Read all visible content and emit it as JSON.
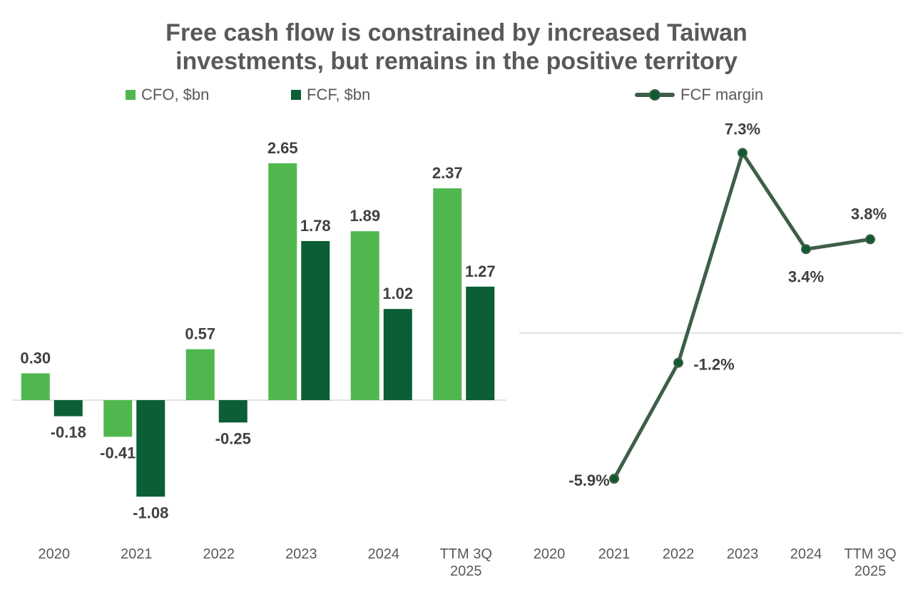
{
  "title": {
    "line1": "Free cash flow is constrained by increased Taiwan",
    "line2": "investments, but remains in the positive territory"
  },
  "colors": {
    "cfo": "#50b74f",
    "fcf": "#0b5e35",
    "margin_line": "#3f5e4a",
    "margin_marker": "#0f5a2f",
    "axis": "#d9d9d9"
  },
  "legend": {
    "cfo": "CFO, $bn",
    "fcf": "FCF, $bn",
    "margin": "FCF margin"
  },
  "chart_data": [
    {
      "type": "bar",
      "title": "",
      "categories": [
        "2020",
        "2021",
        "2022",
        "2023",
        "2024",
        "TTM 3Q\n2025"
      ],
      "series": [
        {
          "name": "CFO, $bn",
          "values": [
            0.3,
            -0.41,
            0.57,
            2.65,
            1.89,
            2.37
          ],
          "labels": [
            "0.30",
            "-0.41",
            "0.57",
            "2.65",
            "1.89",
            "2.37"
          ]
        },
        {
          "name": "FCF, $bn",
          "values": [
            -0.18,
            -1.08,
            -0.25,
            1.78,
            1.02,
            1.27
          ],
          "labels": [
            "-0.18",
            "-1.08",
            "-0.25",
            "1.78",
            "1.02",
            "1.27"
          ]
        }
      ],
      "xlabel": "",
      "ylabel": "",
      "grid": false
    },
    {
      "type": "line",
      "title": "",
      "categories": [
        "2020",
        "2021",
        "2022",
        "2023",
        "2024",
        "TTM 3Q\n2025"
      ],
      "series": [
        {
          "name": "FCF margin",
          "values": [
            null,
            -5.9,
            -1.2,
            7.3,
            3.4,
            3.8
          ],
          "labels": [
            null,
            "-5.9%",
            "-1.2%",
            "7.3%",
            "3.4%",
            "3.8%"
          ]
        }
      ],
      "xlabel": "",
      "ylabel": "",
      "grid": false
    }
  ]
}
